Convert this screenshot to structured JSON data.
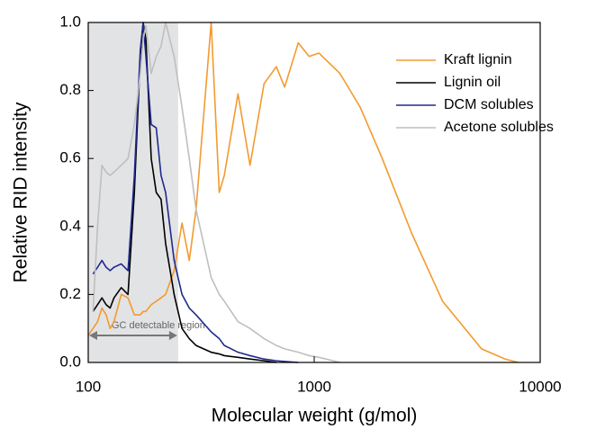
{
  "chart_data": {
    "type": "line",
    "xlabel": "Molecular weight (g/mol)",
    "ylabel": "Relative RID intensity",
    "xscale": "log",
    "xlim": [
      100,
      10000
    ],
    "xticks": [
      100,
      1000,
      10000
    ],
    "ylim": [
      0,
      1
    ],
    "yticks": [
      {
        "value": 0,
        "label": "0.0"
      },
      0.2,
      0.4,
      0.6,
      0.8,
      {
        "value": 1,
        "label": "1.0"
      }
    ],
    "highlight": {
      "x": [
        100,
        250
      ],
      "label": "GC detectable region",
      "color": "#e2e3e5"
    },
    "legend": "upper right",
    "x": [
      100,
      105,
      110,
      115,
      120,
      125,
      130,
      140,
      150,
      160,
      170,
      175,
      180,
      190,
      200,
      210,
      220,
      240,
      260,
      280,
      300,
      350,
      380,
      400,
      460,
      520,
      600,
      680,
      740,
      850,
      950,
      1050,
      1300,
      1600,
      2000,
      2700,
      3700,
      5500,
      7000,
      8000,
      10000
    ],
    "series": [
      {
        "name": "Kraft lignin",
        "color": "#f39a2f",
        "values": [
          0.08,
          0.1,
          0.12,
          0.16,
          0.14,
          0.1,
          0.12,
          0.2,
          0.19,
          0.14,
          0.14,
          0.15,
          0.15,
          0.17,
          0.18,
          0.19,
          0.2,
          0.27,
          0.41,
          0.3,
          0.45,
          1.0,
          0.5,
          0.55,
          0.79,
          0.58,
          0.82,
          0.87,
          0.81,
          0.94,
          0.9,
          0.91,
          0.85,
          0.75,
          0.6,
          0.38,
          0.18,
          0.04,
          0.01,
          0,
          null
        ]
      },
      {
        "name": "Lignin oil",
        "color": "#000000",
        "values": [
          null,
          0.15,
          0.17,
          0.19,
          0.17,
          0.16,
          0.19,
          0.22,
          0.2,
          0.5,
          0.9,
          1.0,
          0.95,
          0.6,
          0.5,
          0.48,
          0.35,
          0.2,
          0.1,
          0.07,
          0.05,
          0.03,
          0.025,
          0.02,
          0.015,
          0.01,
          0.005,
          0,
          null,
          null,
          null,
          null,
          null,
          null,
          null,
          null,
          null,
          null,
          null,
          null,
          null
        ]
      },
      {
        "name": "DCM solubles",
        "color": "#1f2a8c",
        "values": [
          null,
          0.26,
          0.28,
          0.3,
          0.28,
          0.27,
          0.28,
          0.29,
          0.27,
          0.55,
          0.92,
          1.0,
          0.9,
          0.7,
          0.69,
          0.55,
          0.5,
          0.3,
          0.2,
          0.16,
          0.14,
          0.09,
          0.07,
          0.05,
          0.03,
          0.02,
          0.01,
          0.005,
          0.003,
          0,
          null,
          null,
          null,
          null,
          null,
          null,
          null,
          null,
          null,
          null,
          null
        ]
      },
      {
        "name": "Acetone solubles",
        "color": "#bfbfbf",
        "values": [
          null,
          0.15,
          0.4,
          0.58,
          0.56,
          0.55,
          0.56,
          0.58,
          0.6,
          0.7,
          0.85,
          0.95,
          0.99,
          0.85,
          0.9,
          0.93,
          1.0,
          0.9,
          0.75,
          0.6,
          0.45,
          0.25,
          0.2,
          0.18,
          0.12,
          0.1,
          0.07,
          0.05,
          0.04,
          0.03,
          0.02,
          0.015,
          0,
          null,
          null,
          null,
          null,
          null,
          null,
          null,
          null
        ]
      }
    ]
  }
}
